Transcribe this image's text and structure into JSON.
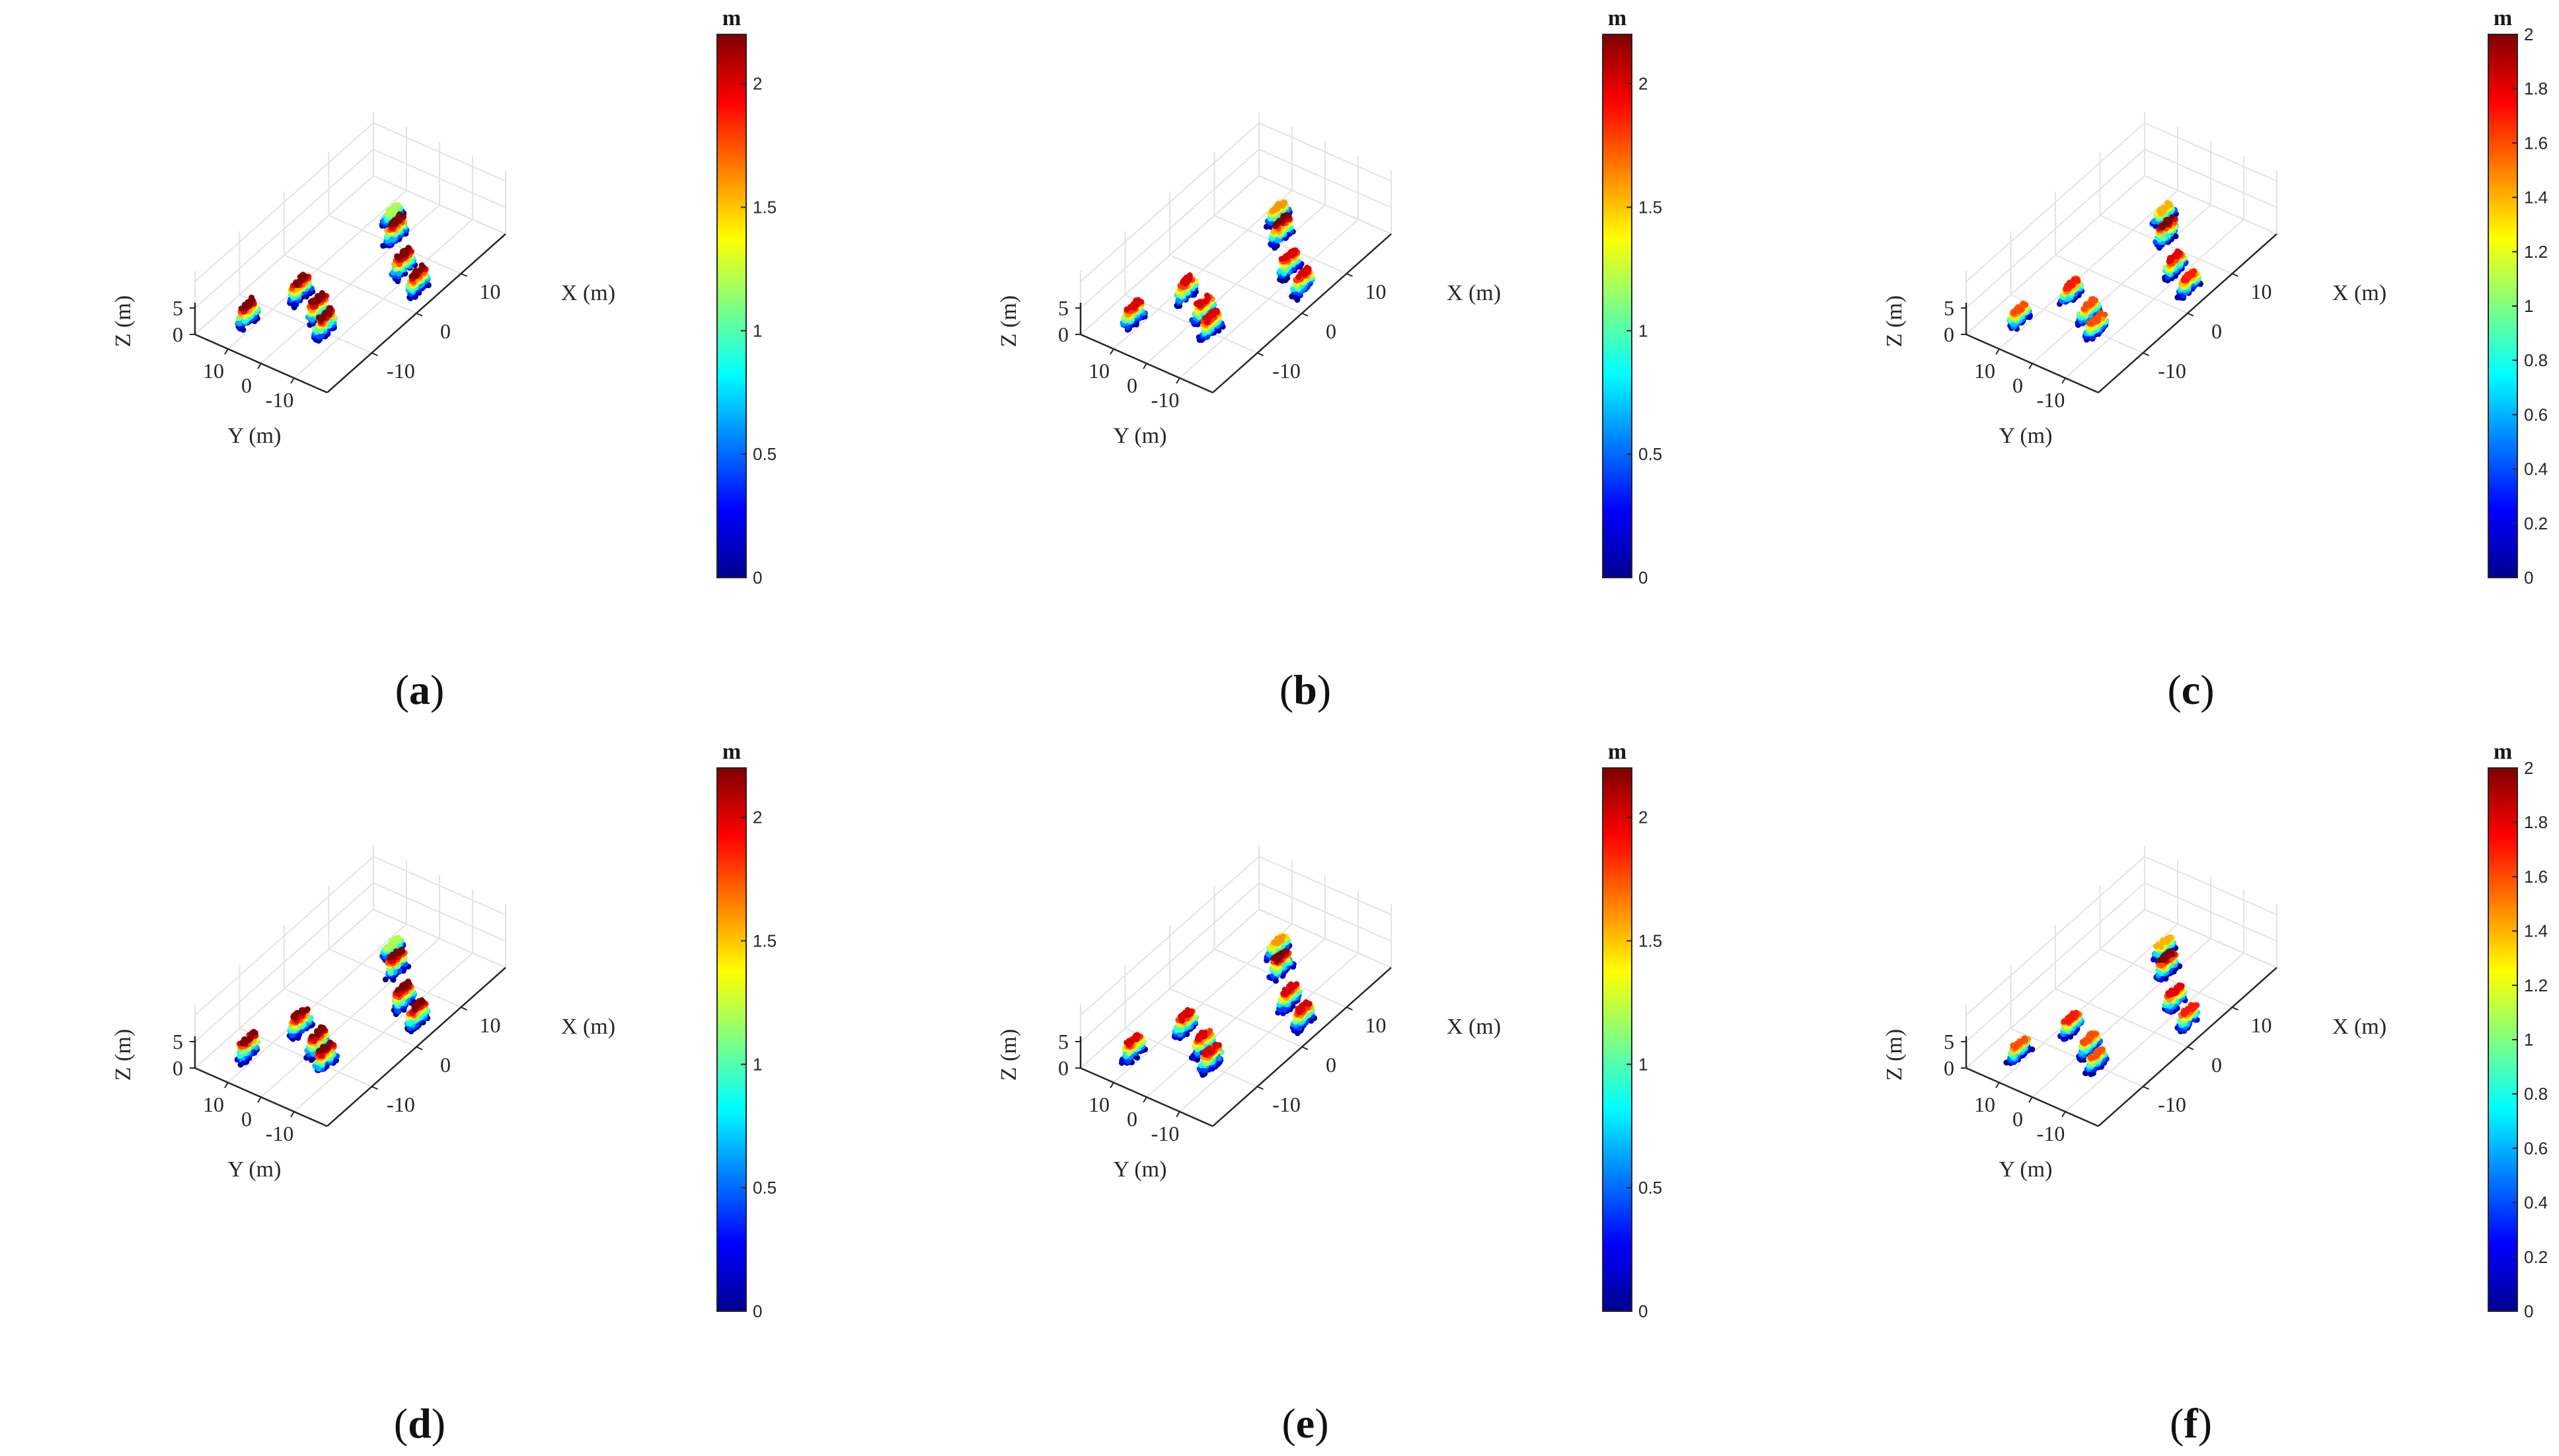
{
  "chart_data": [
    {
      "type": "scatter3d",
      "panel": "a",
      "caption_open": "(",
      "caption_letter": "a",
      "caption_close": ")",
      "xlabel": "X (m)",
      "ylabel": "Y (m)",
      "zlabel": "Z (m)",
      "xticks": [
        "-10",
        "0",
        "10"
      ],
      "yticks": [
        "10",
        "0",
        "-10"
      ],
      "zticks": [
        "0",
        "5"
      ],
      "colorbar_label": "m",
      "colorbar_ticks": [
        "0",
        "0.5",
        "1",
        "1.5",
        "2"
      ],
      "colorbar_max": 2.2,
      "objects": [
        {
          "x": 14,
          "y": 6,
          "height": 1.2
        },
        {
          "x": 11,
          "y": 1,
          "height": 2.2
        },
        {
          "x": 6,
          "y": -8,
          "height": 2.2
        },
        {
          "x": 4,
          "y": -15,
          "height": 2.2
        },
        {
          "x": -6,
          "y": 7,
          "height": 2.2
        },
        {
          "x": -8,
          "y": -1,
          "height": 2.2
        },
        {
          "x": -10,
          "y": -6,
          "height": 2.2
        },
        {
          "x": -14,
          "y": 12,
          "height": 2.2
        }
      ]
    },
    {
      "type": "scatter3d",
      "panel": "b",
      "caption_open": "(",
      "caption_letter": "b",
      "caption_close": ")",
      "xlabel": "X (m)",
      "ylabel": "Y (m)",
      "zlabel": "Z (m)",
      "xticks": [
        "-10",
        "0",
        "10"
      ],
      "yticks": [
        "10",
        "0",
        "-10"
      ],
      "zticks": [
        "0",
        "5"
      ],
      "colorbar_label": "m",
      "colorbar_ticks": [
        "0",
        "0.5",
        "1",
        "1.5",
        "2"
      ],
      "colorbar_max": 2.2,
      "objects": [
        {
          "x": 14,
          "y": 6,
          "height": 1.6
        },
        {
          "x": 11,
          "y": 1,
          "height": 2.2
        },
        {
          "x": 6,
          "y": -8,
          "height": 2.0
        },
        {
          "x": 4,
          "y": -15,
          "height": 2.0
        },
        {
          "x": -6,
          "y": 7,
          "height": 2.0
        },
        {
          "x": -8,
          "y": -1,
          "height": 2.0
        },
        {
          "x": -10,
          "y": -6,
          "height": 2.0
        },
        {
          "x": -14,
          "y": 12,
          "height": 2.0
        }
      ]
    },
    {
      "type": "scatter3d",
      "panel": "c",
      "caption_open": "(",
      "caption_letter": "c",
      "caption_close": ")",
      "xlabel": "X (m)",
      "ylabel": "Y (m)",
      "zlabel": "Z (m)",
      "xticks": [
        "-10",
        "0",
        "10"
      ],
      "yticks": [
        "10",
        "0",
        "-10"
      ],
      "zticks": [
        "0",
        "5"
      ],
      "colorbar_label": "m",
      "colorbar_ticks": [
        "0",
        "0.2",
        "0.4",
        "0.6",
        "0.8",
        "1",
        "1.2",
        "1.4",
        "1.6",
        "1.8",
        "2"
      ],
      "colorbar_max": 2.0,
      "objects": [
        {
          "x": 14,
          "y": 6,
          "height": 1.4
        },
        {
          "x": 11,
          "y": 1,
          "height": 2.0
        },
        {
          "x": 6,
          "y": -8,
          "height": 1.8
        },
        {
          "x": 4,
          "y": -15,
          "height": 1.7
        },
        {
          "x": -6,
          "y": 7,
          "height": 1.7
        },
        {
          "x": -8,
          "y": -1,
          "height": 1.6
        },
        {
          "x": -10,
          "y": -6,
          "height": 1.6
        },
        {
          "x": -14,
          "y": 12,
          "height": 1.6
        }
      ]
    },
    {
      "type": "scatter3d",
      "panel": "d",
      "caption_open": "(",
      "caption_letter": "d",
      "caption_close": ")",
      "xlabel": "X (m)",
      "ylabel": "Y (m)",
      "zlabel": "Z (m)",
      "xticks": [
        "-10",
        "0",
        "10"
      ],
      "yticks": [
        "10",
        "0",
        "-10"
      ],
      "zticks": [
        "0",
        "5"
      ],
      "colorbar_label": "m",
      "colorbar_ticks": [
        "0",
        "0.5",
        "1",
        "1.5",
        "2"
      ],
      "colorbar_max": 2.2,
      "objects": [
        {
          "x": 14,
          "y": 6,
          "height": 1.2
        },
        {
          "x": 11,
          "y": 1,
          "height": 2.2
        },
        {
          "x": 6,
          "y": -8,
          "height": 2.2
        },
        {
          "x": 4,
          "y": -15,
          "height": 2.2
        },
        {
          "x": -6,
          "y": 7,
          "height": 2.2
        },
        {
          "x": -8,
          "y": -1,
          "height": 2.2
        },
        {
          "x": -10,
          "y": -6,
          "height": 2.2
        },
        {
          "x": -14,
          "y": 12,
          "height": 2.2
        }
      ]
    },
    {
      "type": "scatter3d",
      "panel": "e",
      "caption_open": "(",
      "caption_letter": "e",
      "caption_close": ")",
      "xlabel": "X (m)",
      "ylabel": "Y (m)",
      "zlabel": "Z (m)",
      "xticks": [
        "-10",
        "0",
        "10"
      ],
      "yticks": [
        "10",
        "0",
        "-10"
      ],
      "zticks": [
        "0",
        "5"
      ],
      "colorbar_label": "m",
      "colorbar_ticks": [
        "0",
        "0.5",
        "1",
        "1.5",
        "2"
      ],
      "colorbar_max": 2.2,
      "objects": [
        {
          "x": 14,
          "y": 6,
          "height": 1.6
        },
        {
          "x": 11,
          "y": 1,
          "height": 2.2
        },
        {
          "x": 6,
          "y": -8,
          "height": 2.0
        },
        {
          "x": 4,
          "y": -15,
          "height": 2.0
        },
        {
          "x": -6,
          "y": 7,
          "height": 2.0
        },
        {
          "x": -8,
          "y": -1,
          "height": 2.0
        },
        {
          "x": -10,
          "y": -6,
          "height": 2.0
        },
        {
          "x": -14,
          "y": 12,
          "height": 2.0
        }
      ]
    },
    {
      "type": "scatter3d",
      "panel": "f",
      "caption_open": "(",
      "caption_letter": "f",
      "caption_close": ")",
      "xlabel": "X (m)",
      "ylabel": "Y (m)",
      "zlabel": "Z (m)",
      "xticks": [
        "-10",
        "0",
        "10"
      ],
      "yticks": [
        "10",
        "0",
        "-10"
      ],
      "zticks": [
        "0",
        "5"
      ],
      "colorbar_label": "m",
      "colorbar_ticks": [
        "0",
        "0.2",
        "0.4",
        "0.6",
        "0.8",
        "1",
        "1.2",
        "1.4",
        "1.6",
        "1.8",
        "2"
      ],
      "colorbar_max": 2.0,
      "objects": [
        {
          "x": 14,
          "y": 6,
          "height": 1.4
        },
        {
          "x": 11,
          "y": 1,
          "height": 2.0
        },
        {
          "x": 6,
          "y": -8,
          "height": 1.8
        },
        {
          "x": 4,
          "y": -15,
          "height": 1.7
        },
        {
          "x": -6,
          "y": 7,
          "height": 1.7
        },
        {
          "x": -8,
          "y": -1,
          "height": 1.6
        },
        {
          "x": -10,
          "y": -6,
          "height": 1.6
        },
        {
          "x": -14,
          "y": 12,
          "height": 1.6
        }
      ]
    }
  ],
  "colormap": [
    "#00008f",
    "#0000ff",
    "#0080ff",
    "#00ffff",
    "#80ff80",
    "#ffff00",
    "#ff8000",
    "#ff0000",
    "#800000"
  ],
  "colors": {
    "grid": "#e3e3e3",
    "axis": "#262626",
    "text": "#262626"
  }
}
